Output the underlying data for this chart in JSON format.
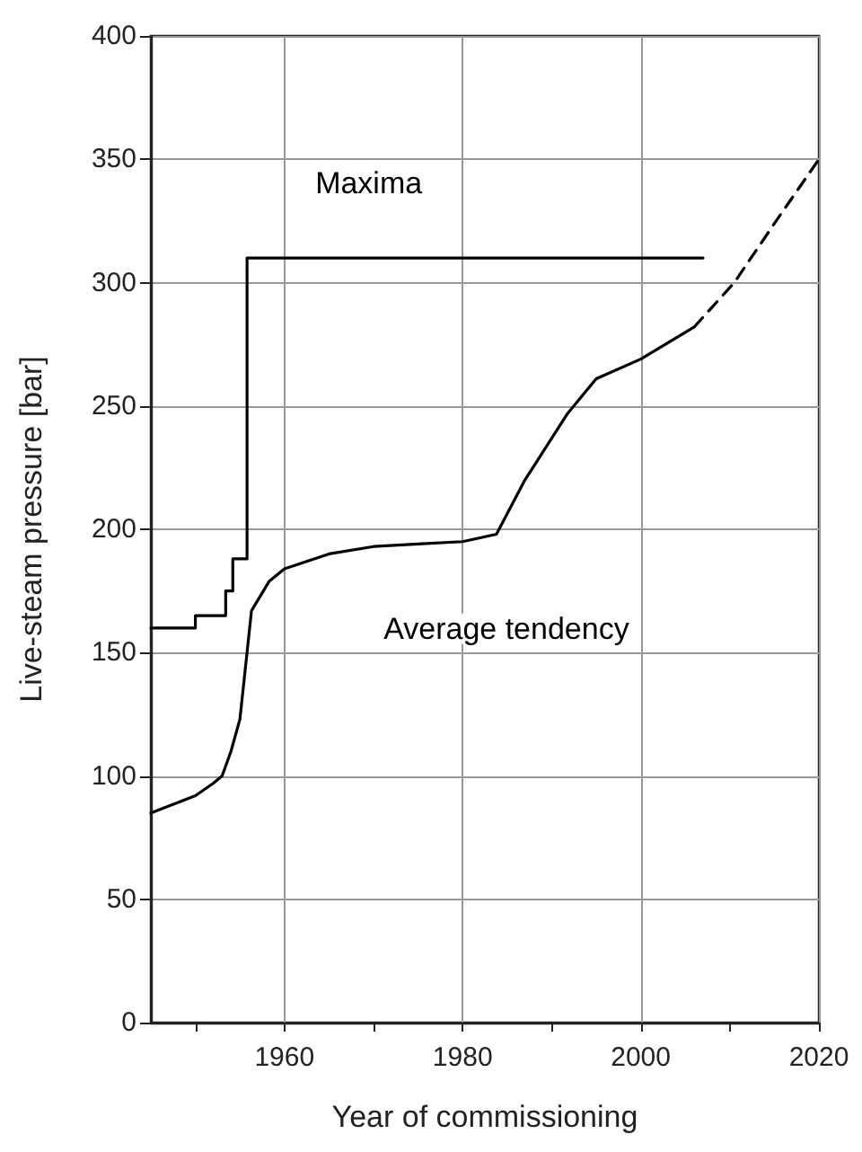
{
  "chart_data": {
    "type": "line",
    "xlabel": "Year of commissioning",
    "ylabel": "Live-steam pressure [bar]",
    "xlim": [
      1945,
      2020
    ],
    "ylim": [
      0,
      400
    ],
    "xticks": [
      {
        "value": 1950,
        "label": null
      },
      1960,
      {
        "value": 1970,
        "label": null
      },
      1980,
      {
        "value": 1990,
        "label": null
      },
      2000,
      {
        "value": 2010,
        "label": null
      },
      2020
    ],
    "yticks": [
      0,
      50,
      100,
      150,
      200,
      250,
      300,
      350,
      400
    ],
    "grid": true,
    "legend": false,
    "marker": "none",
    "series": [
      {
        "name": "Maxima",
        "type": "step",
        "color": "#000000",
        "line_style": "solid",
        "x": [
          1945,
          1950,
          1953.4,
          1954.2,
          1955.8,
          2007
        ],
        "values": [
          160,
          165,
          175,
          188,
          310,
          310
        ]
      },
      {
        "name": "Average tendency",
        "color": "#000000",
        "line_style": "solid",
        "x": [
          1945,
          1950,
          1952,
          1953,
          1954,
          1955,
          1956.3,
          1958.3,
          1960,
          1965,
          1970,
          1975,
          1980,
          1983.8,
          1987,
          1991.8,
          1995,
          2000,
          2006
        ],
        "values": [
          85,
          92,
          97,
          100,
          110,
          123,
          167,
          179,
          184,
          190,
          193,
          194,
          195,
          198,
          220,
          247,
          261,
          269,
          282
        ]
      },
      {
        "color": "#000000",
        "line_style": "dashed",
        "x": [
          2006,
          2010.5,
          2015.2,
          2020
        ],
        "values": [
          282,
          300,
          325,
          350
        ]
      }
    ]
  }
}
